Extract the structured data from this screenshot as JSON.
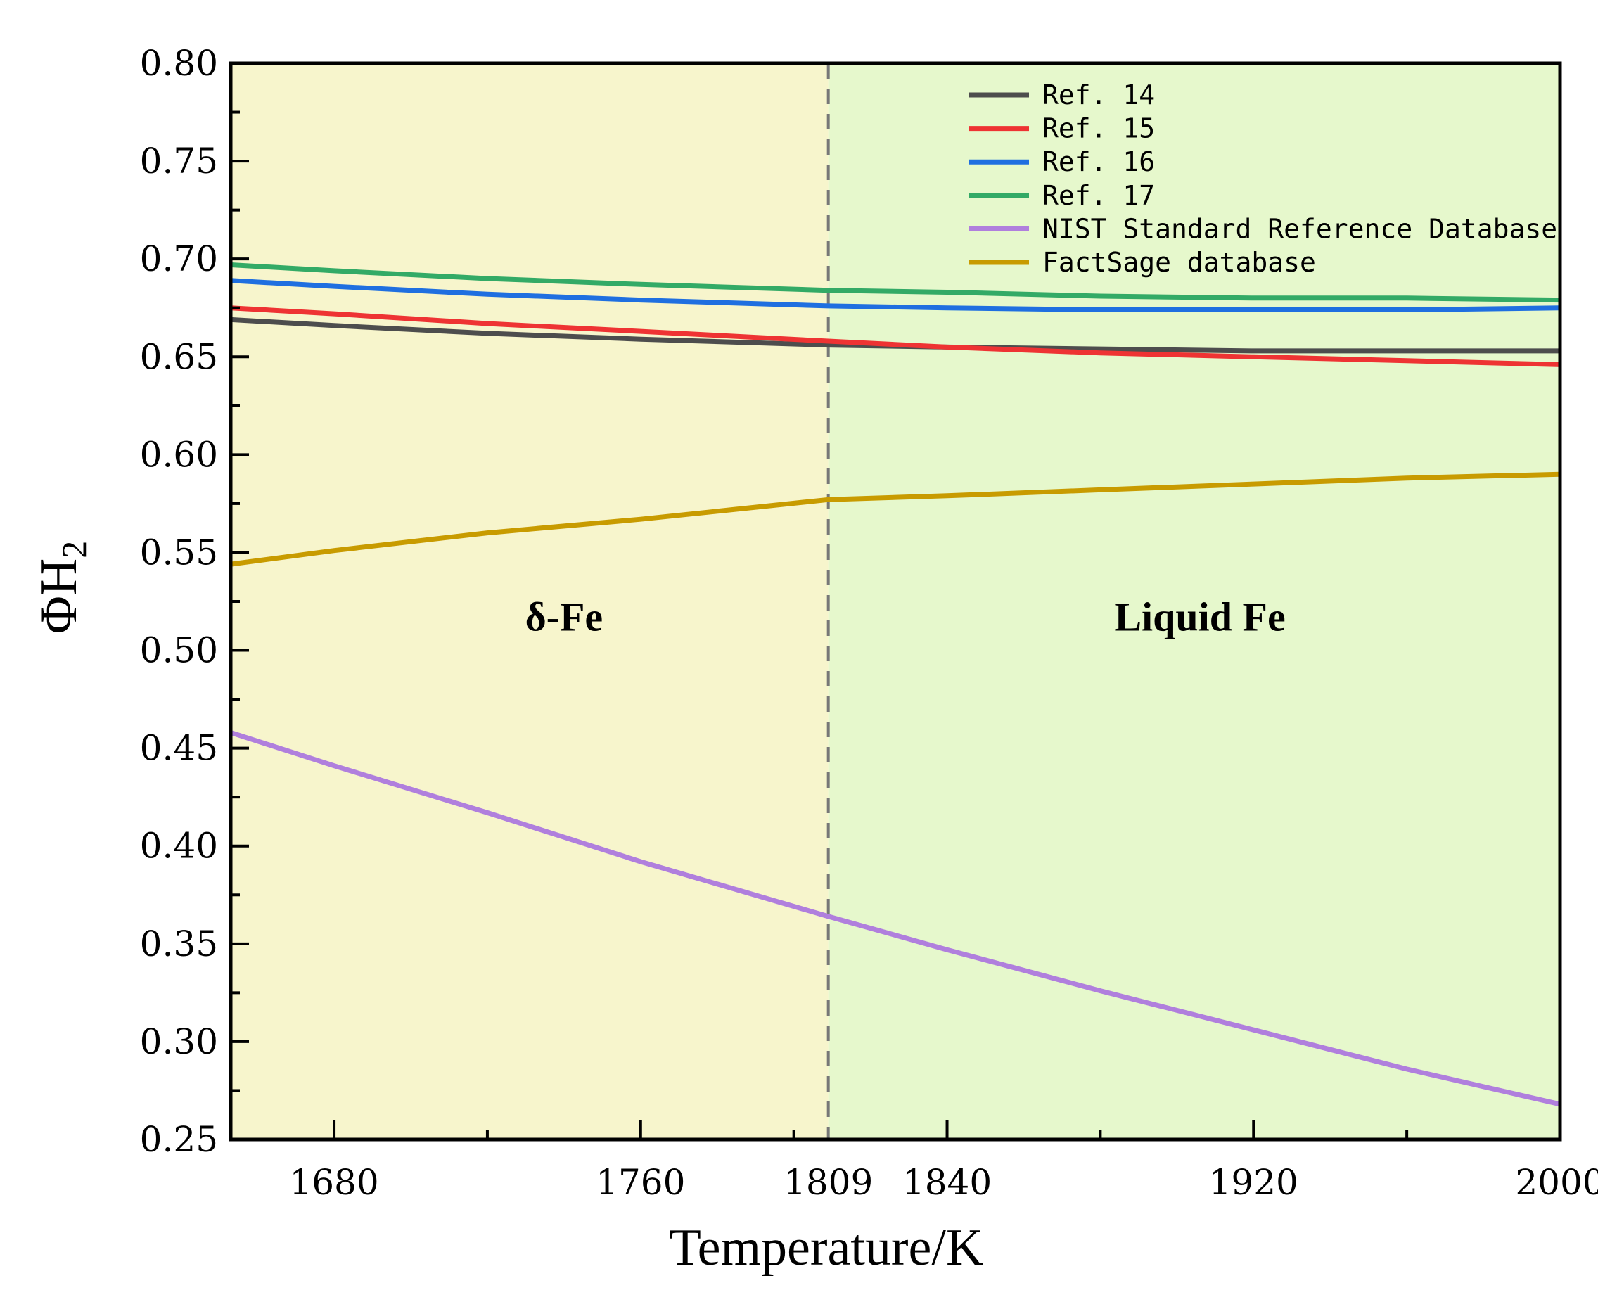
{
  "chart_data": {
    "type": "line",
    "title": "",
    "xlabel": "Temperature/K",
    "ylabel": "ΦH",
    "ylabel_subscript": "2",
    "xlim": [
      1653,
      2000
    ],
    "ylim": [
      0.25,
      0.8
    ],
    "x_ticks": [
      1680,
      1760,
      1809,
      1840,
      1920,
      2000
    ],
    "x_minor_ticks": [
      1720,
      1800,
      1880,
      1960
    ],
    "y_ticks": [
      0.25,
      0.3,
      0.35,
      0.4,
      0.45,
      0.5,
      0.55,
      0.6,
      0.65,
      0.7,
      0.75,
      0.8
    ],
    "y_tick_labels": [
      "0.25",
      "0.30",
      "0.35",
      "0.40",
      "0.45",
      "0.50",
      "0.55",
      "0.60",
      "0.65",
      "0.70",
      "0.75",
      "0.80"
    ],
    "phase_boundary": 1809,
    "regions": [
      {
        "label": "δ-Fe",
        "from": 1653,
        "to": 1809,
        "color": "#f7f5cc",
        "label_x": 1740,
        "label_y": 0.51
      },
      {
        "label": "Liquid Fe",
        "from": 1809,
        "to": 2000,
        "color": "#e6f8cc",
        "label_x": 1906,
        "label_y": 0.51
      }
    ],
    "x": [
      1653,
      1680,
      1720,
      1760,
      1809,
      1840,
      1880,
      1920,
      1960,
      2000
    ],
    "series": [
      {
        "name": "Ref. 14",
        "color": "#4d4d4d",
        "values": [
          0.669,
          0.666,
          0.662,
          0.659,
          0.656,
          0.655,
          0.654,
          0.653,
          0.653,
          0.653
        ]
      },
      {
        "name": "Ref. 15",
        "color": "#ee3333",
        "values": [
          0.675,
          0.672,
          0.667,
          0.663,
          0.658,
          0.655,
          0.652,
          0.65,
          0.648,
          0.646
        ]
      },
      {
        "name": "Ref. 16",
        "color": "#1f6fe0",
        "values": [
          0.689,
          0.686,
          0.682,
          0.679,
          0.676,
          0.675,
          0.674,
          0.674,
          0.674,
          0.675
        ]
      },
      {
        "name": "Ref. 17",
        "color": "#33aa66",
        "values": [
          0.697,
          0.694,
          0.69,
          0.687,
          0.684,
          0.683,
          0.681,
          0.68,
          0.68,
          0.679
        ]
      },
      {
        "name": "NIST Standard Reference Database",
        "color": "#b07fdd",
        "values": [
          0.458,
          0.441,
          0.417,
          0.392,
          0.364,
          0.347,
          0.326,
          0.306,
          0.286,
          0.268
        ]
      },
      {
        "name": "FactSage database",
        "color": "#c89b00",
        "values": [
          0.544,
          0.551,
          0.56,
          0.567,
          0.577,
          0.579,
          0.582,
          0.585,
          0.588,
          0.59
        ]
      }
    ],
    "legend_position": "top-right"
  }
}
